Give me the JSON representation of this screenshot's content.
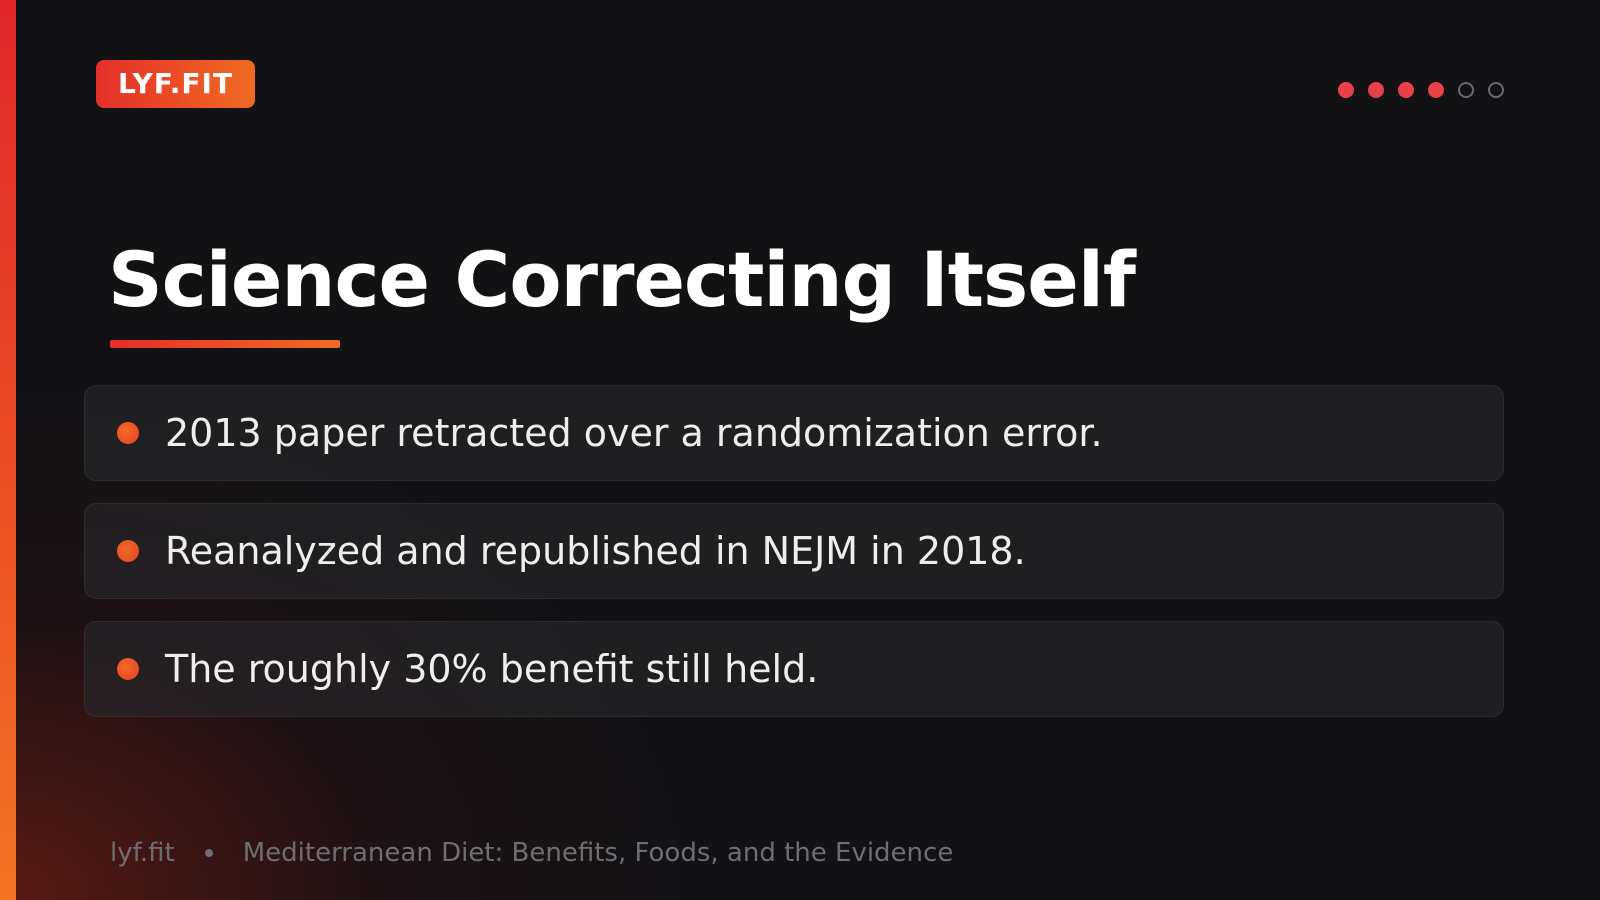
{
  "brand": "LYF.FIT",
  "progress": {
    "current": 4,
    "total": 6
  },
  "title": "Science Correcting Itself",
  "bullets": [
    "2013 paper retracted over a randomization error.",
    "Reanalyzed and republished in NEJM in 2018.",
    "The roughly 30% benefit still held."
  ],
  "footer": {
    "site": "lyf.fit",
    "deck_title": "Mediterranean Diet: Benefits, Foods, and the Evidence"
  }
}
